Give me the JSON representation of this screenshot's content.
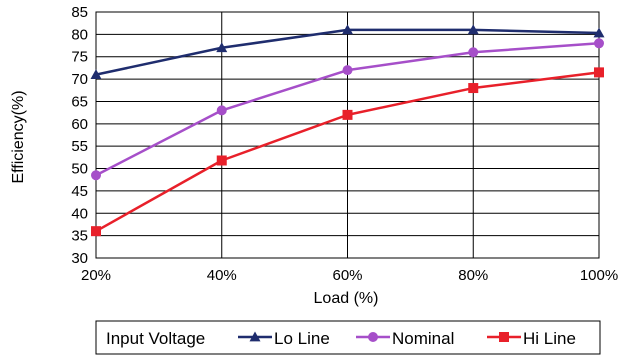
{
  "chart_data": {
    "type": "line",
    "xlabel": "Load (%)",
    "ylabel": "Efficiency(%)",
    "categories": [
      "20%",
      "40%",
      "60%",
      "80%",
      "100%"
    ],
    "ylim": [
      30,
      85
    ],
    "yticks": [
      30,
      35,
      40,
      45,
      50,
      55,
      60,
      65,
      70,
      75,
      80,
      85
    ],
    "grid": true,
    "legend": {
      "title": "Input Voltage",
      "placement": "bottom"
    },
    "series": [
      {
        "name": "Lo Line",
        "color": "#1f2d6e",
        "marker": "triangle",
        "values": [
          71,
          77,
          81,
          81,
          80.3
        ]
      },
      {
        "name": "Nominal",
        "color": "#a64fc9",
        "marker": "circle",
        "values": [
          48.5,
          63,
          72,
          76,
          78
        ]
      },
      {
        "name": "Hi Line",
        "color": "#e8202a",
        "marker": "square",
        "values": [
          36,
          51.8,
          62,
          68,
          71.5
        ]
      }
    ]
  }
}
